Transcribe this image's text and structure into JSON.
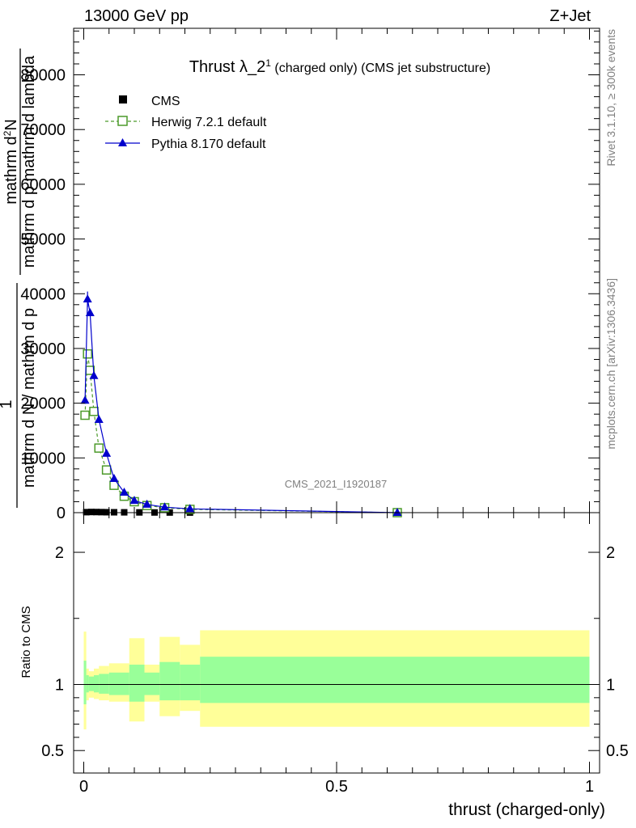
{
  "header": {
    "energy_label": "13000 GeV pp",
    "process_label": "Z+Jet"
  },
  "side_labels": {
    "rivet": "Rivet 3.1.10, ≥ 300k events",
    "mcplots": "mcplots.cern.ch [arXiv:1306.3436]"
  },
  "watermark": "CMS_2021_I1920187",
  "chart_data": [
    {
      "type": "line",
      "title_main": "Thrust λ_2",
      "title_sup": "1",
      "title_rest": " (charged only) (CMS jet substructure)",
      "ylabel_numerator": "mathrm d",
      "ylabel_numerator_sup": "2",
      "ylabel_numerator_tail": "N",
      "ylabel_denominator": "mathrm d p mathrm d lambda",
      "ylabel_prefix_1": "1",
      "ylabel_prefix_2": "mathrm d N / mathrm d p",
      "ylim": [
        0,
        88500
      ],
      "xlim": [
        -0.02,
        1.02
      ],
      "y_ticks": [
        0,
        10000,
        20000,
        30000,
        40000,
        50000,
        60000,
        70000,
        80000
      ],
      "y_tick_labels": [
        "0",
        "10000",
        "20000",
        "30000",
        "40000",
        "50000",
        "60000",
        "70000",
        "80000"
      ],
      "legend_position": "top-left",
      "series": [
        {
          "name": "CMS",
          "color": "#000000",
          "marker": "square-filled",
          "x": [
            0.005,
            0.015,
            0.025,
            0.035,
            0.045,
            0.06,
            0.08,
            0.11,
            0.14,
            0.17,
            0.21,
            0.62
          ],
          "y": [
            90,
            120,
            110,
            95,
            80,
            70,
            60,
            45,
            35,
            25,
            15,
            3
          ]
        },
        {
          "name": "Herwig 7.2.1 default",
          "color": "#4c9a2a",
          "marker": "square-open",
          "line": "dashed",
          "x": [
            0.0025,
            0.0075,
            0.0125,
            0.02,
            0.03,
            0.045,
            0.06,
            0.08,
            0.1,
            0.125,
            0.16,
            0.21,
            0.62
          ],
          "y": [
            17800,
            29000,
            26000,
            18500,
            11800,
            7800,
            5000,
            3000,
            2000,
            1300,
            900,
            600,
            0
          ]
        },
        {
          "name": "Pythia 8.170 default",
          "color": "#0000cc",
          "marker": "triangle-filled",
          "line": "solid",
          "x": [
            0.0025,
            0.0075,
            0.0125,
            0.02,
            0.03,
            0.045,
            0.06,
            0.08,
            0.1,
            0.125,
            0.16,
            0.21,
            0.62
          ],
          "y": [
            20500,
            39000,
            36500,
            25000,
            17000,
            10800,
            6200,
            3700,
            2200,
            1500,
            1000,
            700,
            0
          ]
        }
      ]
    },
    {
      "type": "area",
      "ylabel": "Ratio to CMS",
      "xlabel": "thrust (charged-only)",
      "xlim": [
        -0.02,
        1.02
      ],
      "ylim": [
        0.33,
        2.3
      ],
      "y_ticks": [
        0.5,
        1,
        2
      ],
      "y_tick_labels": [
        "0.5",
        "1",
        "2"
      ],
      "x_ticks": [
        0,
        0.5,
        1
      ],
      "x_tick_labels": [
        "0",
        "0.5",
        "1"
      ],
      "reference": 1,
      "bands": [
        {
          "name": "total uncertainty",
          "color": "#ffff99",
          "bins": [
            {
              "x0": 0.0,
              "x1": 0.005,
              "low": 0.66,
              "high": 1.4
            },
            {
              "x0": 0.005,
              "x1": 0.01,
              "low": 0.88,
              "high": 1.12
            },
            {
              "x0": 0.01,
              "x1": 0.02,
              "low": 0.9,
              "high": 1.1
            },
            {
              "x0": 0.02,
              "x1": 0.03,
              "low": 0.89,
              "high": 1.12
            },
            {
              "x0": 0.03,
              "x1": 0.05,
              "low": 0.88,
              "high": 1.14
            },
            {
              "x0": 0.05,
              "x1": 0.09,
              "low": 0.87,
              "high": 1.16
            },
            {
              "x0": 0.09,
              "x1": 0.12,
              "low": 0.72,
              "high": 1.35
            },
            {
              "x0": 0.12,
              "x1": 0.15,
              "low": 0.87,
              "high": 1.15
            },
            {
              "x0": 0.15,
              "x1": 0.19,
              "low": 0.76,
              "high": 1.36
            },
            {
              "x0": 0.19,
              "x1": 0.23,
              "low": 0.8,
              "high": 1.3
            },
            {
              "x0": 0.23,
              "x1": 1.0,
              "low": 0.68,
              "high": 1.41
            }
          ]
        },
        {
          "name": "statistical uncertainty",
          "color": "#99ff99",
          "bins": [
            {
              "x0": 0.0,
              "x1": 0.005,
              "low": 0.85,
              "high": 1.18
            },
            {
              "x0": 0.005,
              "x1": 0.01,
              "low": 0.94,
              "high": 1.07
            },
            {
              "x0": 0.01,
              "x1": 0.02,
              "low": 0.95,
              "high": 1.06
            },
            {
              "x0": 0.02,
              "x1": 0.03,
              "low": 0.94,
              "high": 1.07
            },
            {
              "x0": 0.03,
              "x1": 0.05,
              "low": 0.93,
              "high": 1.08
            },
            {
              "x0": 0.05,
              "x1": 0.09,
              "low": 0.92,
              "high": 1.09
            },
            {
              "x0": 0.09,
              "x1": 0.12,
              "low": 0.87,
              "high": 1.15
            },
            {
              "x0": 0.12,
              "x1": 0.15,
              "low": 0.92,
              "high": 1.09
            },
            {
              "x0": 0.15,
              "x1": 0.19,
              "low": 0.88,
              "high": 1.17
            },
            {
              "x0": 0.19,
              "x1": 0.23,
              "low": 0.88,
              "high": 1.15
            },
            {
              "x0": 0.23,
              "x1": 1.0,
              "low": 0.86,
              "high": 1.21
            }
          ]
        }
      ]
    }
  ]
}
